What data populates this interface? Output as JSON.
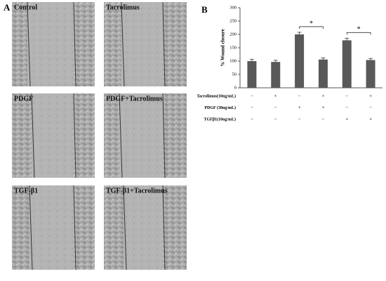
{
  "panel_a": {
    "label": "A",
    "images": [
      "Control",
      "Tacrolimus",
      "PDGF",
      "PDGF+Tacrolimus",
      "TGF-β1",
      "TGF-β1+Tacrolimus"
    ]
  },
  "chart_data": {
    "type": "bar",
    "panel_label": "B",
    "ylabel": "% Wound closure",
    "categories": [
      null,
      null,
      null,
      null,
      null,
      null
    ],
    "values": [
      100,
      97,
      200,
      106,
      178,
      104
    ],
    "errors": [
      7,
      6,
      8,
      6,
      8,
      6
    ],
    "color": "#595959",
    "ylim": [
      0,
      300
    ],
    "yticks": [
      0,
      50,
      100,
      150,
      200,
      250,
      300
    ],
    "treatments": [
      {
        "name": "Tacrolimus(10ng/mL)",
        "signs": [
          "−",
          "+",
          "−",
          "+",
          "−",
          "+"
        ]
      },
      {
        "name": "PDGF (30ng/mL)",
        "signs": [
          "−",
          "−",
          "+",
          "+",
          "−",
          "−"
        ]
      },
      {
        "name": "TGFβ1(10ng/mL)",
        "signs": [
          "−",
          "−",
          "−",
          "−",
          "+",
          "+"
        ]
      }
    ],
    "annotations": [
      {
        "text": "*",
        "from": 2,
        "to": 3
      },
      {
        "text": "*",
        "from": 4,
        "to": 5
      }
    ]
  }
}
